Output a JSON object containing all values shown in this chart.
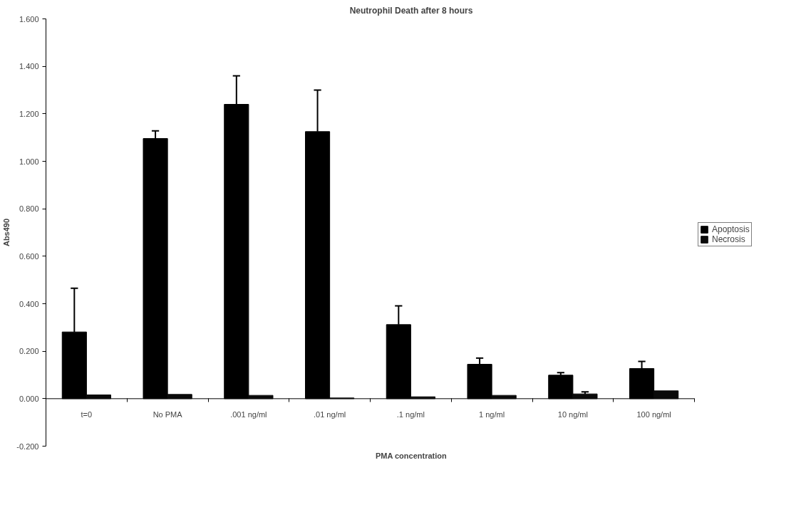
{
  "chart_data": {
    "type": "bar",
    "title": "Neutrophil Death after 8 hours",
    "xlabel": "PMA concentration",
    "ylabel": "Abs490",
    "categories": [
      "t=0",
      "No PMA",
      ".001 ng/ml",
      ".01 ng/ml",
      ".1 ng/ml",
      "1 ng/ml",
      "10 ng/ml",
      "100 ng/ml"
    ],
    "series": [
      {
        "name": "Apoptosis",
        "color": "#000000",
        "values": [
          0.281,
          1.096,
          1.24,
          1.125,
          0.312,
          0.145,
          0.099,
          0.127
        ],
        "errors": [
          [
            0.281,
            0.465
          ],
          [
            1.096,
            1.128
          ],
          [
            1.24,
            1.36
          ],
          [
            1.125,
            1.3
          ],
          [
            0.312,
            0.391
          ],
          [
            0.145,
            0.171
          ],
          [
            0.099,
            0.11
          ],
          [
            0.127,
            0.157
          ]
        ]
      },
      {
        "name": "Necrosis",
        "color": "#0a0a0a",
        "values": [
          0.016,
          0.018,
          0.014,
          0.003,
          0.008,
          0.014,
          0.02,
          0.033
        ],
        "errors": [
          null,
          null,
          null,
          null,
          null,
          null,
          [
            0.02,
            0.029
          ],
          null
        ]
      }
    ],
    "ylim": [
      -0.2,
      1.6
    ],
    "yticks": [
      {
        "value": -0.2,
        "label": "-0.200"
      },
      {
        "value": 0,
        "label": "0.000"
      },
      {
        "value": 0.2,
        "label": "0.200"
      },
      {
        "value": 0.4,
        "label": "0.400"
      },
      {
        "value": 0.6,
        "label": "0.600"
      },
      {
        "value": 0.8,
        "label": "0.800"
      },
      {
        "value": 1.0,
        "label": "1.000"
      },
      {
        "value": 1.2,
        "label": "1.200"
      },
      {
        "value": 1.4,
        "label": "1.400"
      },
      {
        "value": 1.6,
        "label": "1.600"
      }
    ],
    "grid": false,
    "legend": "right"
  }
}
